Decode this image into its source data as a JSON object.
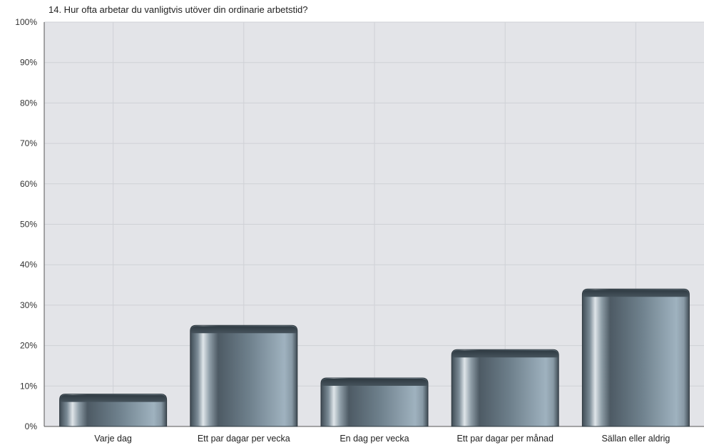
{
  "chart_data": {
    "type": "bar",
    "title": "14. Hur ofta arbetar du vanligtvis utöver din ordinarie arbetstid?",
    "xlabel": "",
    "ylabel": "",
    "categories": [
      "Varje dag",
      "Ett par dagar per vecka",
      "En dag per vecka",
      "Ett par dagar per månad",
      "Sällan eller aldrig"
    ],
    "values": [
      8,
      25,
      12,
      19,
      34
    ],
    "unit": "%",
    "ylim": [
      0,
      100
    ],
    "yticks": [
      "0%",
      "10%",
      "20%",
      "30%",
      "40%",
      "50%",
      "60%",
      "70%",
      "80%",
      "90%",
      "100%"
    ],
    "grid": true,
    "legend": "none"
  },
  "colors": {
    "plot_background": "#e3e4e8",
    "gridline": "#cfd1d6",
    "bar_dark": "#48555f",
    "bar_mid": "#6d7e8a",
    "bar_light": "#a4b7c4",
    "bar_highlight": "#dfe5e9",
    "bar_outline": "#2e383f"
  }
}
